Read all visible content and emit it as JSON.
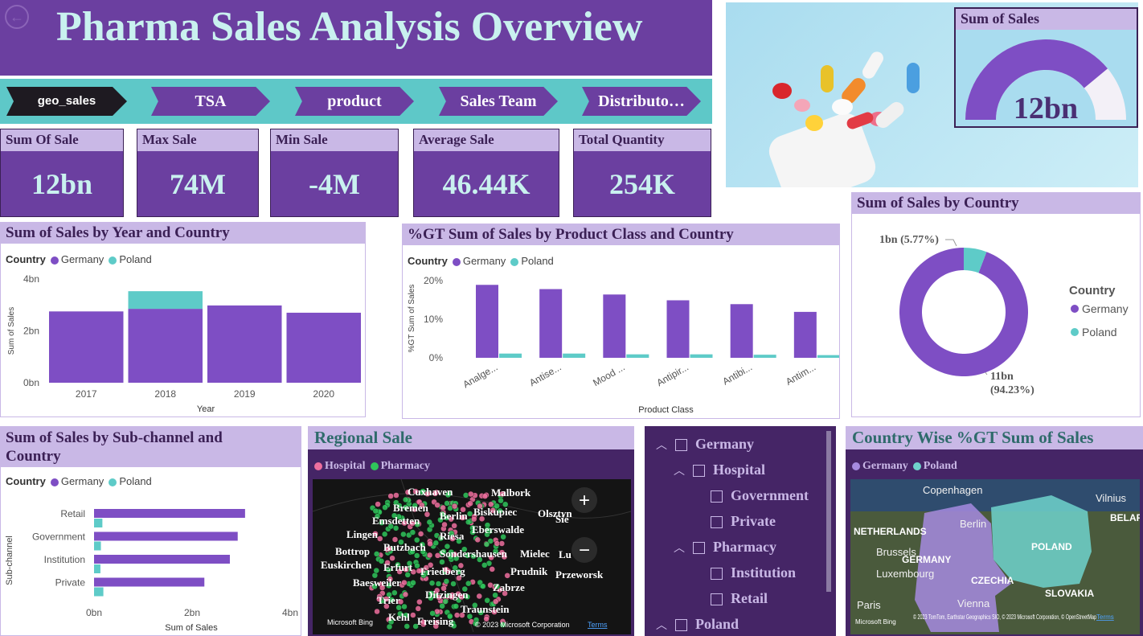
{
  "header": {
    "title": "Pharma Sales Analysis Overview"
  },
  "nav": [
    "geo_sales",
    "TSA",
    "product",
    "Sales Team",
    "Distributo…"
  ],
  "kpis": [
    {
      "label": "Sum Of Sale",
      "value": "12bn"
    },
    {
      "label": "Max Sale",
      "value": "74M"
    },
    {
      "label": "Min Sale",
      "value": "-4M"
    },
    {
      "label": "Average Sale",
      "value": "46.44K"
    },
    {
      "label": "Total Quantity",
      "value": "254K"
    }
  ],
  "gauge": {
    "title": "Sum of Sales",
    "value": "12bn",
    "fraction": 0.78
  },
  "legend": {
    "label": "Country",
    "germany": "Germany",
    "poland": "Poland"
  },
  "colors": {
    "germany": "#7e4ec4",
    "poland": "#5ecbc8",
    "purple_dark": "#6b3fa0",
    "teal": "#5ec8c8"
  },
  "year_card": {
    "title": "Sum of Sales by Year and Country"
  },
  "class_card": {
    "title": "%GT Sum of Sales by Product Class and Country"
  },
  "country_card": {
    "title": "Sum of Sales by Country",
    "label_small": "1bn (5.77%)",
    "label_big_1": "11bn",
    "label_big_2": "(94.23%)",
    "legend_title": "Country"
  },
  "subchannel_card": {
    "title_1": "Sum of Sales by Sub-channel and",
    "title_2": "Country"
  },
  "regional": {
    "title": "Regional Sale",
    "legend_a": "Hospital",
    "legend_b": "Pharmacy",
    "cities": [
      "Cuxhaven",
      "Malbork",
      "Bremen",
      "Biskupiec",
      "Olsztyn",
      "Emsdetten",
      "Berlin",
      "Eberswalde",
      "Lingen",
      "Riesa",
      "Butzbach",
      "Bottrop",
      "Sondershausen",
      "Mielec",
      "Erfurt",
      "Euskirchen",
      "Friedberg",
      "Prudnik",
      "Przeworsk",
      "Baesweiler",
      "Zabrze",
      "Ditzingen",
      "Trier",
      "Traunstein",
      "Kehl",
      "Freising",
      "Sie",
      "Lu"
    ],
    "copyright": "© 2023 Microsoft Corporation",
    "terms": "Terms",
    "bing": "Microsoft Bing",
    "zoom_in": "+",
    "zoom_out": "−"
  },
  "slicer": {
    "items": [
      {
        "label": "Germany",
        "level": 0,
        "chev": "︿"
      },
      {
        "label": "Hospital",
        "level": 1,
        "chev": "︿"
      },
      {
        "label": "Government",
        "level": 2,
        "chev": ""
      },
      {
        "label": "Private",
        "level": 2,
        "chev": ""
      },
      {
        "label": "Pharmacy",
        "level": 1,
        "chev": "︿"
      },
      {
        "label": "Institution",
        "level": 2,
        "chev": ""
      },
      {
        "label": "Retail",
        "level": 2,
        "chev": ""
      },
      {
        "label": "Poland",
        "level": 0,
        "chev": "︿"
      }
    ]
  },
  "cw_map": {
    "title": "Country Wise %GT Sum of Sales",
    "legend_a": "Germany",
    "legend_b": "Poland",
    "labels": [
      "Copenhagen",
      "Vilnius",
      "NETHERLANDS",
      "Berlin",
      "BELARU",
      "Brussels",
      "GERMANY",
      "POLAND",
      "Luxembourg",
      "CZECHIA",
      "SLOVAKIA",
      "Paris",
      "Vienna"
    ],
    "copyright": "© 2023 TomTom, Earthstar Geographics SIO, © 2023 Microsoft Corporation, © OpenStreetMap",
    "terms": "Terms",
    "bing": "Microsoft Bing"
  },
  "chart_data": [
    {
      "type": "bar",
      "title": "Sum of Sales by Year and Country",
      "xlabel": "Year",
      "ylabel": "Sum of Sales",
      "categories": [
        "2017",
        "2018",
        "2019",
        "2020"
      ],
      "series": [
        {
          "name": "Germany",
          "values": [
            2.75,
            2.85,
            2.98,
            2.7
          ]
        },
        {
          "name": "Poland",
          "values": [
            0,
            0.68,
            0,
            0
          ]
        }
      ],
      "stacked": true,
      "ylim": [
        0,
        4
      ],
      "yticks": [
        "0bn",
        "2bn",
        "4bn"
      ],
      "ytick_values": [
        0,
        2,
        4
      ]
    },
    {
      "type": "bar",
      "title": "%GT Sum of Sales by Product Class and Country",
      "xlabel": "Product Class",
      "ylabel": "%GT Sum of Sales",
      "categories": [
        "Analge...",
        "Antise...",
        "Mood ...",
        "Antipir...",
        "Antibi...",
        "Antim..."
      ],
      "series": [
        {
          "name": "Germany",
          "values": [
            18.9,
            17.8,
            16.4,
            14.9,
            13.9,
            11.9
          ]
        },
        {
          "name": "Poland",
          "values": [
            1.1,
            1.1,
            0.9,
            0.9,
            0.8,
            0.7
          ]
        }
      ],
      "ylim": [
        0,
        20
      ],
      "yticks": [
        "0%",
        "10%",
        "20%"
      ],
      "ytick_values": [
        0,
        10,
        20
      ]
    },
    {
      "type": "pie",
      "title": "Sum of Sales by Country",
      "categories": [
        "Germany",
        "Poland"
      ],
      "values": [
        94.23,
        5.77
      ],
      "donut": true,
      "legend": "right"
    },
    {
      "type": "bar",
      "orientation": "horizontal",
      "title": "Sum of Sales by Sub-channel and Country",
      "xlabel": "Sum of Sales",
      "ylabel": "Sub-channel",
      "categories": [
        "Retail",
        "Government",
        "Institution",
        "Private"
      ],
      "series": [
        {
          "name": "Germany",
          "values": [
            3.08,
            2.93,
            2.77,
            2.25
          ]
        },
        {
          "name": "Poland",
          "values": [
            0.17,
            0.14,
            0.13,
            0.19
          ]
        }
      ],
      "xlim": [
        0,
        4
      ],
      "xticks": [
        "0bn",
        "2bn",
        "4bn"
      ],
      "xtick_values": [
        0,
        2,
        4
      ]
    }
  ]
}
